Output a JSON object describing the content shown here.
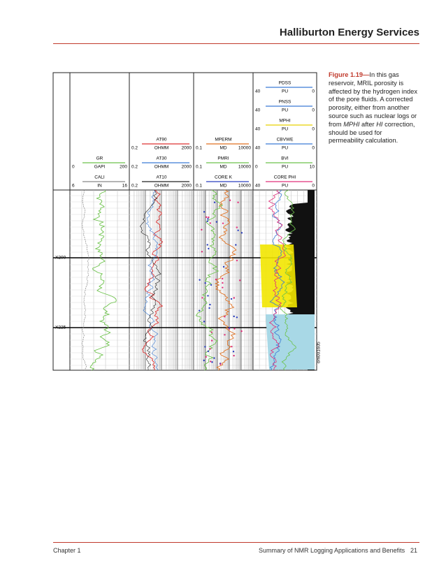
{
  "header": {
    "title": "Halliburton Energy Services"
  },
  "figure": {
    "tracks": [
      {
        "curves": [
          {
            "name": "GR",
            "left": "0",
            "unit": "GAPI",
            "right": "200",
            "color": "#6cc24a"
          },
          {
            "name": "CALI",
            "left": "6",
            "unit": "IN",
            "right": "16",
            "color": "#888888"
          }
        ]
      },
      {
        "curves": [
          {
            "name": "AT90",
            "left": "0.2",
            "unit": "OHMM",
            "right": "2000",
            "color": "#d33"
          },
          {
            "name": "AT30",
            "left": "0.2",
            "unit": "OHMM",
            "right": "2000",
            "color": "#3a7bd5"
          },
          {
            "name": "AT10",
            "left": "0.2",
            "unit": "OHMM",
            "right": "2000",
            "color": "#222"
          }
        ]
      },
      {
        "curves": [
          {
            "name": "MPERM",
            "left": "0.1",
            "unit": "MD",
            "right": "10000",
            "color": "#e07020"
          },
          {
            "name": "PMRI",
            "left": "0.1",
            "unit": "MD",
            "right": "10000",
            "color": "#6cc24a"
          },
          {
            "name": "CORE K",
            "left": "0.1",
            "unit": "MD",
            "right": "10000",
            "color": "#2a3fbf"
          }
        ]
      },
      {
        "curves": [
          {
            "name": "PDSS",
            "left": "40",
            "unit": "PU",
            "right": "0",
            "color": "#3a7bd5"
          },
          {
            "name": "PNSS",
            "left": "40",
            "unit": "PU",
            "right": "0",
            "color": "#3a7bd5"
          },
          {
            "name": "MPHI",
            "left": "40",
            "unit": "PU",
            "right": "0",
            "color": "#e6d000"
          },
          {
            "name": "CBVWE",
            "left": "40",
            "unit": "PU",
            "right": "0",
            "color": "#3a7bd5"
          },
          {
            "name": "BVI",
            "left": "0",
            "unit": "PU",
            "right": "10",
            "color": "#6cc24a"
          },
          {
            "name": "CORE PHI",
            "left": "40",
            "unit": "PU",
            "right": "0",
            "color": "#e0307a"
          }
        ]
      }
    ],
    "depths": [
      "X200",
      "X225"
    ],
    "code": "om001605"
  },
  "caption": {
    "label": "Figure 1.19—",
    "parts": [
      "In this gas reservoir, MRIL porosity is affected by the hydrogen index of the pore fluids. A corrected porosity, either from another source such as nuclear logs or from ",
      "MPHI",
      " after ",
      "HI",
      " correction, should be used for permeability calculation."
    ]
  },
  "footer": {
    "chapter": "Chapter 1",
    "section": "Summary of NMR Logging Applications and Benefits",
    "page": "21"
  }
}
